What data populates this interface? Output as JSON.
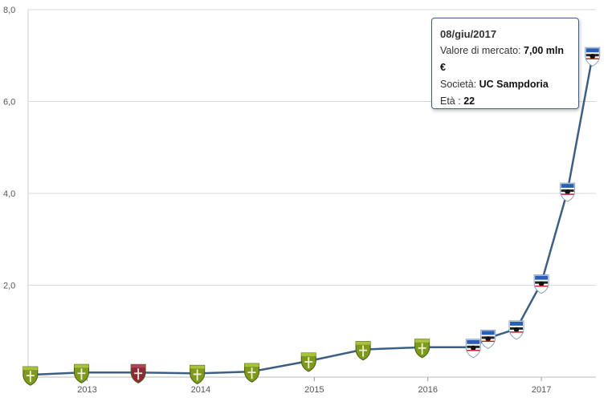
{
  "chart_data": {
    "type": "line",
    "title": "",
    "xlabel": "",
    "ylabel": "",
    "ylim": [
      0,
      8
    ],
    "y_ticks": [
      "8,0",
      "6,0",
      "4,0",
      "2,0"
    ],
    "y_tick_values": [
      8,
      6,
      4,
      2
    ],
    "x_ticks": [
      "2013",
      "2014",
      "2015",
      "2016",
      "2017"
    ],
    "x_tick_values": [
      2013,
      2014,
      2015,
      2016,
      2017
    ],
    "xlim": [
      2012.48,
      2017.48
    ],
    "grid": true,
    "line_color": "#3e5f85",
    "series": [
      {
        "x": [
          2012.5,
          2012.95,
          2013.45,
          2013.97,
          2014.45,
          2014.95,
          2015.43,
          2015.95,
          2016.4,
          2016.53,
          2016.78,
          2017.0,
          2017.23,
          2017.45
        ],
        "values": [
          0.05,
          0.1,
          0.1,
          0.08,
          0.12,
          0.35,
          0.6,
          0.65,
          0.65,
          0.85,
          1.05,
          2.05,
          4.05,
          7.0
        ],
        "clubs": [
          "green",
          "green",
          "maroon",
          "green",
          "green",
          "green",
          "green",
          "green",
          "sampdoria",
          "sampdoria",
          "sampdoria",
          "sampdoria",
          "sampdoria",
          "sampdoria"
        ]
      }
    ],
    "club_colors": {
      "green": "#7d9a1e",
      "maroon": "#8b2a3e",
      "sampdoria": "#2b5fb3"
    }
  },
  "tooltip": {
    "date": "08/giu/2017",
    "market_value_label": "Valore di mercato:",
    "market_value": "7,00 mln €",
    "club_label": "Società:",
    "club": "UC Sampdoria",
    "age_label": "Età :",
    "age": "22"
  }
}
